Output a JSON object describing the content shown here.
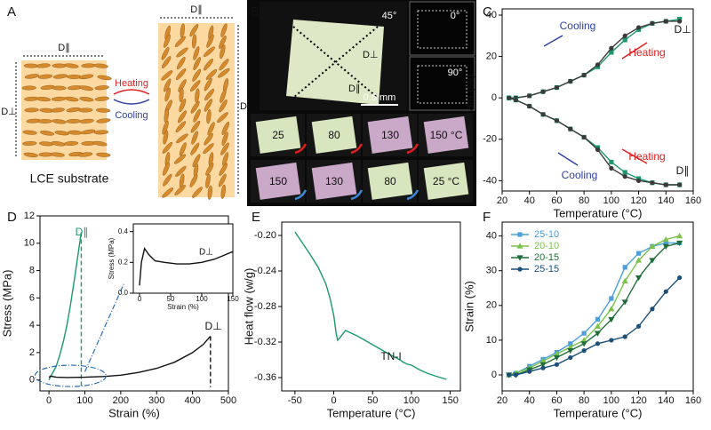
{
  "panel_a": {
    "label": "A",
    "d_parallel_left": "D∥",
    "d_perp_left": "D⊥",
    "d_parallel_right": "D∥",
    "d_perp_right": "D⊥",
    "heating": "Heating",
    "cooling": "Cooling",
    "caption": "LCE substrate"
  },
  "panel_b": {
    "label": "B",
    "angle_main": "45°",
    "angle_top": "0°",
    "angle_bottom": "90°",
    "d_perp": "D⊥",
    "d_parallel": "D∥",
    "scale": "0.5 mm",
    "heating_row": [
      "25",
      "80",
      "130",
      "150 °C"
    ],
    "cooling_row": [
      "150",
      "130",
      "80",
      "25 °C"
    ]
  },
  "chart_data": [
    {
      "type": "line",
      "label": "C",
      "xlabel": "Temperature (°C)",
      "ylabel": "Strain (%)",
      "xlim": [
        20,
        160
      ],
      "xticks": [
        20,
        40,
        60,
        80,
        100,
        120,
        140,
        160
      ],
      "ylim": [
        -45,
        43
      ],
      "yticks": [
        -40,
        -20,
        0,
        20,
        40
      ],
      "x": [
        25,
        30,
        40,
        50,
        60,
        70,
        80,
        90,
        100,
        110,
        120,
        130,
        140,
        150
      ],
      "series": [
        {
          "color": "#1a9a6c",
          "marker": "square",
          "values": [
            0,
            0,
            1,
            3,
            5,
            8,
            11,
            15,
            22,
            28,
            33,
            36,
            37,
            38
          ]
        },
        {
          "color": "#3a3a3a",
          "marker": "circle",
          "values": [
            0,
            0,
            1,
            3,
            5,
            8,
            11,
            16,
            24,
            30,
            34,
            36,
            37,
            37
          ]
        },
        {
          "color": "#1a9a6c",
          "marker": "square",
          "values": [
            0,
            -1,
            -4,
            -8,
            -11,
            -15,
            -19,
            -24,
            -31,
            -36,
            -39,
            -41,
            -42,
            -42
          ]
        },
        {
          "color": "#3a3a3a",
          "marker": "circle",
          "values": [
            0,
            -1,
            -4,
            -8,
            -11,
            -15,
            -19,
            -25,
            -34,
            -38,
            -40,
            -41,
            -42,
            -42
          ]
        }
      ],
      "annotations": [
        "Cooling",
        "Heating",
        "D⊥",
        "Heating",
        "Cooling",
        "D∥"
      ]
    },
    {
      "type": "line",
      "label": "D",
      "xlabel": "Strain (%)",
      "ylabel": "Stress (MPa)",
      "xlim": [
        -25,
        500
      ],
      "xticks": [
        0,
        100,
        200,
        300,
        400,
        500
      ],
      "ylim": [
        -0.8,
        12
      ],
      "yticks": [
        0,
        2,
        4,
        6,
        8,
        10,
        12
      ],
      "series": [
        {
          "color": "#1a9a6c",
          "x": [
            0,
            5,
            10,
            20,
            30,
            40,
            50,
            60,
            70,
            80,
            90
          ],
          "values": [
            0,
            0.3,
            0.5,
            1,
            1.8,
            2.8,
            4,
            5.5,
            7.2,
            9,
            10.8
          ]
        },
        {
          "color": "#111111",
          "x": [
            0,
            5,
            20,
            50,
            100,
            150,
            200,
            250,
            300,
            350,
            400,
            430,
            450
          ],
          "values": [
            0.2,
            0.28,
            0.2,
            0.18,
            0.2,
            0.25,
            0.35,
            0.55,
            0.85,
            1.3,
            2,
            2.6,
            3.2
          ]
        }
      ],
      "annotations": [
        "D∥",
        "D⊥"
      ]
    },
    {
      "type": "line",
      "xlabel": "Strain (%)",
      "ylabel": "Stress (MPa)",
      "xlim": [
        -10,
        150
      ],
      "xticks": [
        0,
        50,
        100,
        150
      ],
      "ylim": [
        0,
        0.45
      ],
      "yticks": [
        {
          "value": 0,
          "label": "0.0"
        },
        0.2,
        0.4
      ],
      "series": [
        {
          "color": "#111111",
          "x": [
            0,
            3,
            8,
            15,
            25,
            40,
            60,
            80,
            100,
            120,
            150
          ],
          "values": [
            0.05,
            0.2,
            0.29,
            0.25,
            0.21,
            0.2,
            0.19,
            0.19,
            0.2,
            0.22,
            0.27
          ]
        }
      ],
      "annotations": [
        "D⊥"
      ]
    },
    {
      "type": "line",
      "label": "E",
      "xlabel": "Temperature (°C)",
      "ylabel": "Heat flow (w/g)",
      "xlim": [
        -67,
        163
      ],
      "xticks": [
        -50,
        0,
        50,
        100,
        150
      ],
      "ylim": [
        -0.375,
        -0.185
      ],
      "yticks": [
        {
          "value": -0.2,
          "label": "-0.20"
        },
        -0.24,
        -0.28,
        -0.32,
        -0.36
      ],
      "series": [
        {
          "color": "#1a9a6c",
          "x": [
            -50,
            -40,
            -30,
            -20,
            -10,
            -5,
            0,
            3,
            5,
            8,
            15,
            30,
            50,
            70,
            85,
            90,
            95,
            100,
            110,
            120,
            130,
            145
          ],
          "values": [
            -0.196,
            -0.209,
            -0.222,
            -0.236,
            -0.255,
            -0.27,
            -0.29,
            -0.31,
            -0.318,
            -0.315,
            -0.307,
            -0.313,
            -0.323,
            -0.333,
            -0.34,
            -0.343,
            -0.345,
            -0.346,
            -0.351,
            -0.355,
            -0.358,
            -0.362
          ]
        }
      ],
      "annotations": [
        "TN-I"
      ]
    },
    {
      "type": "line",
      "label": "F",
      "xlabel": "Temperature (°C)",
      "ylabel": "Strain (%)",
      "xlim": [
        20,
        160
      ],
      "xticks": [
        20,
        40,
        60,
        80,
        100,
        120,
        140,
        160
      ],
      "ylim": [
        -4.6,
        44
      ],
      "yticks": [
        0,
        10,
        20,
        30,
        40
      ],
      "legend": "upper left",
      "x": [
        25,
        30,
        40,
        50,
        60,
        70,
        80,
        90,
        100,
        110,
        120,
        130,
        140,
        150
      ],
      "series": [
        {
          "name": "25-10",
          "color": "#4a9fdc",
          "marker": "square",
          "values": [
            0,
            0.5,
            2.5,
            4.5,
            6.5,
            9,
            12,
            16,
            22,
            31,
            35,
            37,
            38,
            38
          ]
        },
        {
          "name": "20-10",
          "color": "#7cc24a",
          "marker": "triangle",
          "values": [
            0,
            0.5,
            2,
            4,
            6,
            8,
            10,
            14,
            19,
            27,
            33,
            37,
            39,
            40
          ]
        },
        {
          "name": "20-15",
          "color": "#1f6e3a",
          "marker": "triangle-down",
          "values": [
            0,
            0,
            1.5,
            3,
            5,
            7,
            9,
            12,
            16,
            21,
            28,
            33,
            37,
            38
          ]
        },
        {
          "name": "25-15",
          "color": "#1b4f7a",
          "marker": "circle",
          "values": [
            0,
            0,
            1,
            2,
            3,
            5,
            7,
            9,
            10,
            11,
            14,
            19,
            24,
            28
          ]
        }
      ]
    }
  ]
}
